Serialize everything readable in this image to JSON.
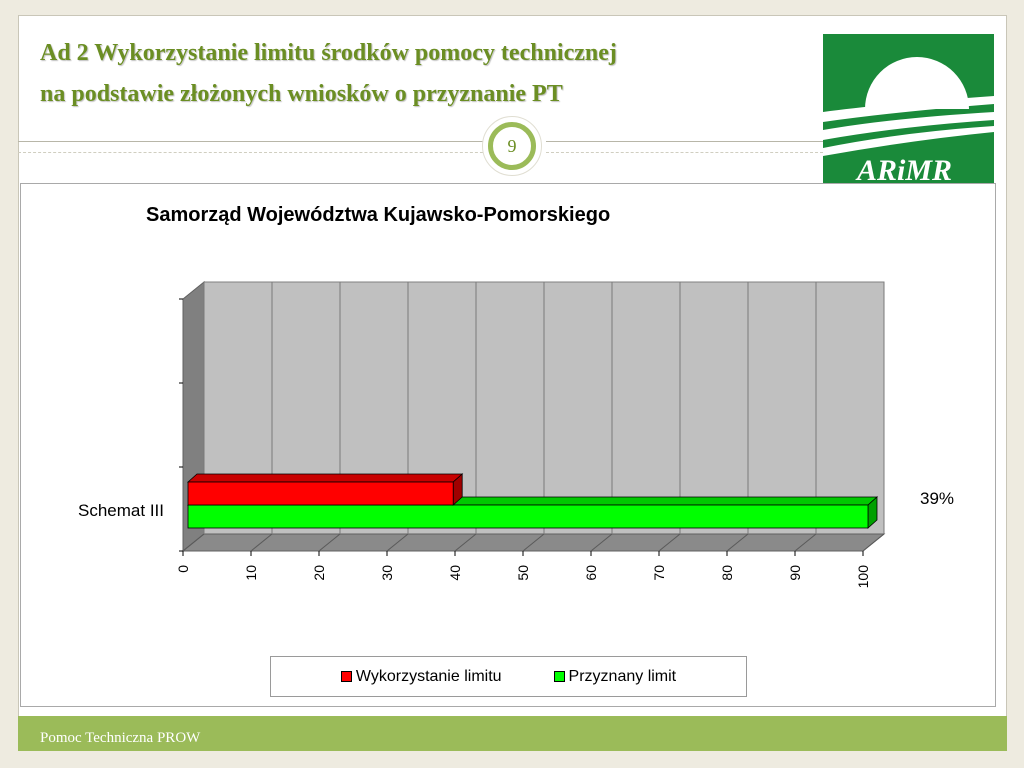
{
  "slide": {
    "title_line1": "Ad 2 Wykorzystanie limitu środków pomocy technicznej",
    "title_line2": "na podstawie złożonych wniosków o przyznanie PT",
    "page_number": "9",
    "logo_text": "ARiMR",
    "footer": "Pomoc Techniczna PROW"
  },
  "colors": {
    "accent": "#9bbb59",
    "title": "#6b8e23",
    "series_used": "#ff0000",
    "series_granted": "#00ff00",
    "logo_green": "#1a8a3a"
  },
  "chart_data": {
    "type": "bar",
    "orientation": "horizontal",
    "3d": true,
    "title": "Samorząd Województwa Kujawsko-Pomorskiego",
    "categories": [
      "Schemat III"
    ],
    "series": [
      {
        "name": "Wykorzystanie limitu",
        "values": [
          39
        ],
        "color": "#ff0000"
      },
      {
        "name": "Przyznany limit",
        "values": [
          100
        ],
        "color": "#00ff00"
      }
    ],
    "xlim": [
      0,
      100
    ],
    "xticks": [
      "0",
      "10",
      "20",
      "30",
      "40",
      "50",
      "60",
      "70",
      "80",
      "90",
      "100"
    ],
    "data_labels": [
      "39%"
    ],
    "grid": true,
    "legend": "bottom"
  }
}
